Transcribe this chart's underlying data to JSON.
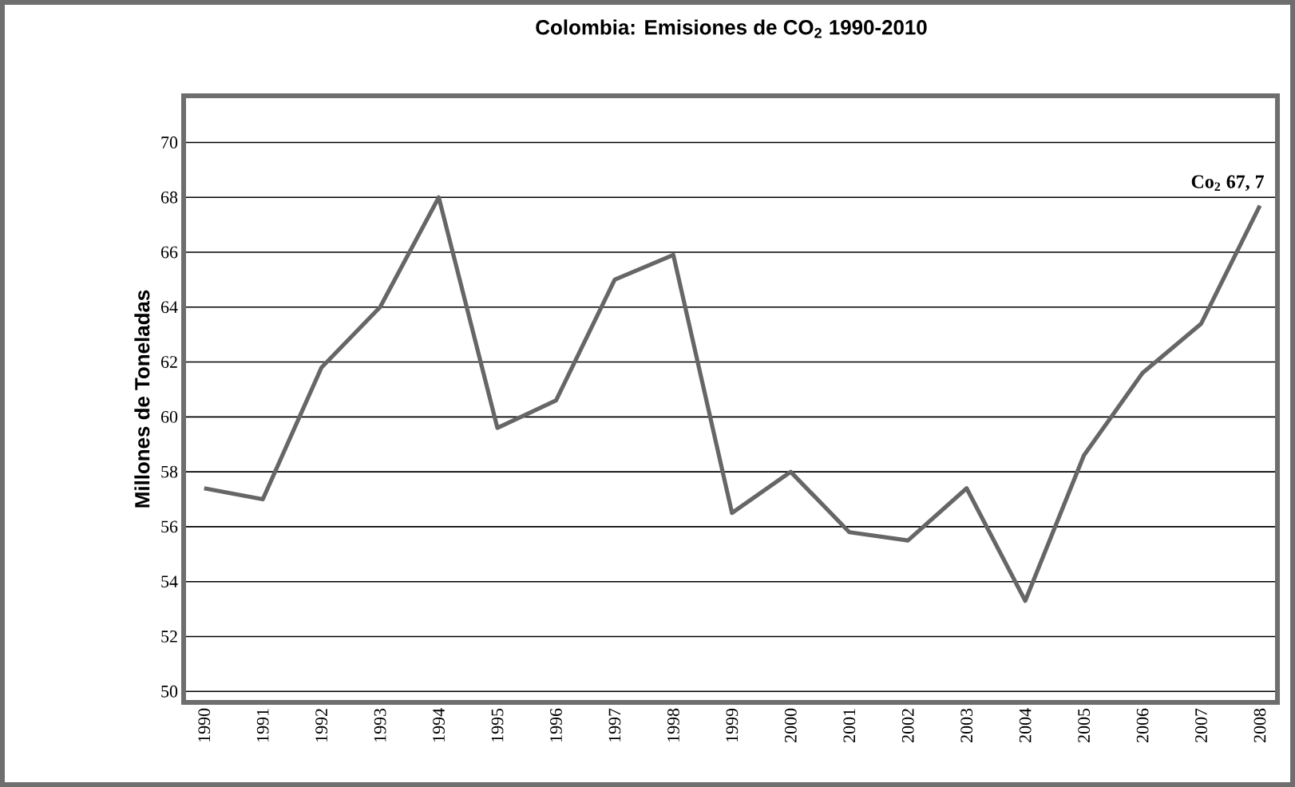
{
  "chart_data": {
    "type": "line",
    "title": "Colombia: Emisiones de CO$_{2}$ 1990-2010",
    "ylabel": "Millones de Toneladas",
    "categories": [
      "1990",
      "1991",
      "1992",
      "1993",
      "1994",
      "1995",
      "1996",
      "1997",
      "1998",
      "1999",
      "2000",
      "2001",
      "2002",
      "2003",
      "2004",
      "2005",
      "2006",
      "2007",
      "2008"
    ],
    "series": [
      {
        "color": "#666666",
        "values": [
          57.4,
          57.0,
          61.8,
          64.0,
          68.0,
          59.6,
          60.6,
          65.0,
          65.9,
          56.5,
          58.0,
          55.8,
          55.5,
          57.4,
          53.3,
          58.6,
          61.6,
          63.4,
          67.7
        ]
      }
    ],
    "ylim": [
      49.6,
      71.7
    ],
    "yticks": [
      50,
      52,
      54,
      56,
      58,
      60,
      62,
      64,
      66,
      68,
      70
    ],
    "grid": "y",
    "marker": "none",
    "line_style": "solid",
    "annotations": [
      {
        "text": "Co$_{2}$ 67, 7",
        "x": "2008",
        "y": 67.7
      }
    ]
  }
}
